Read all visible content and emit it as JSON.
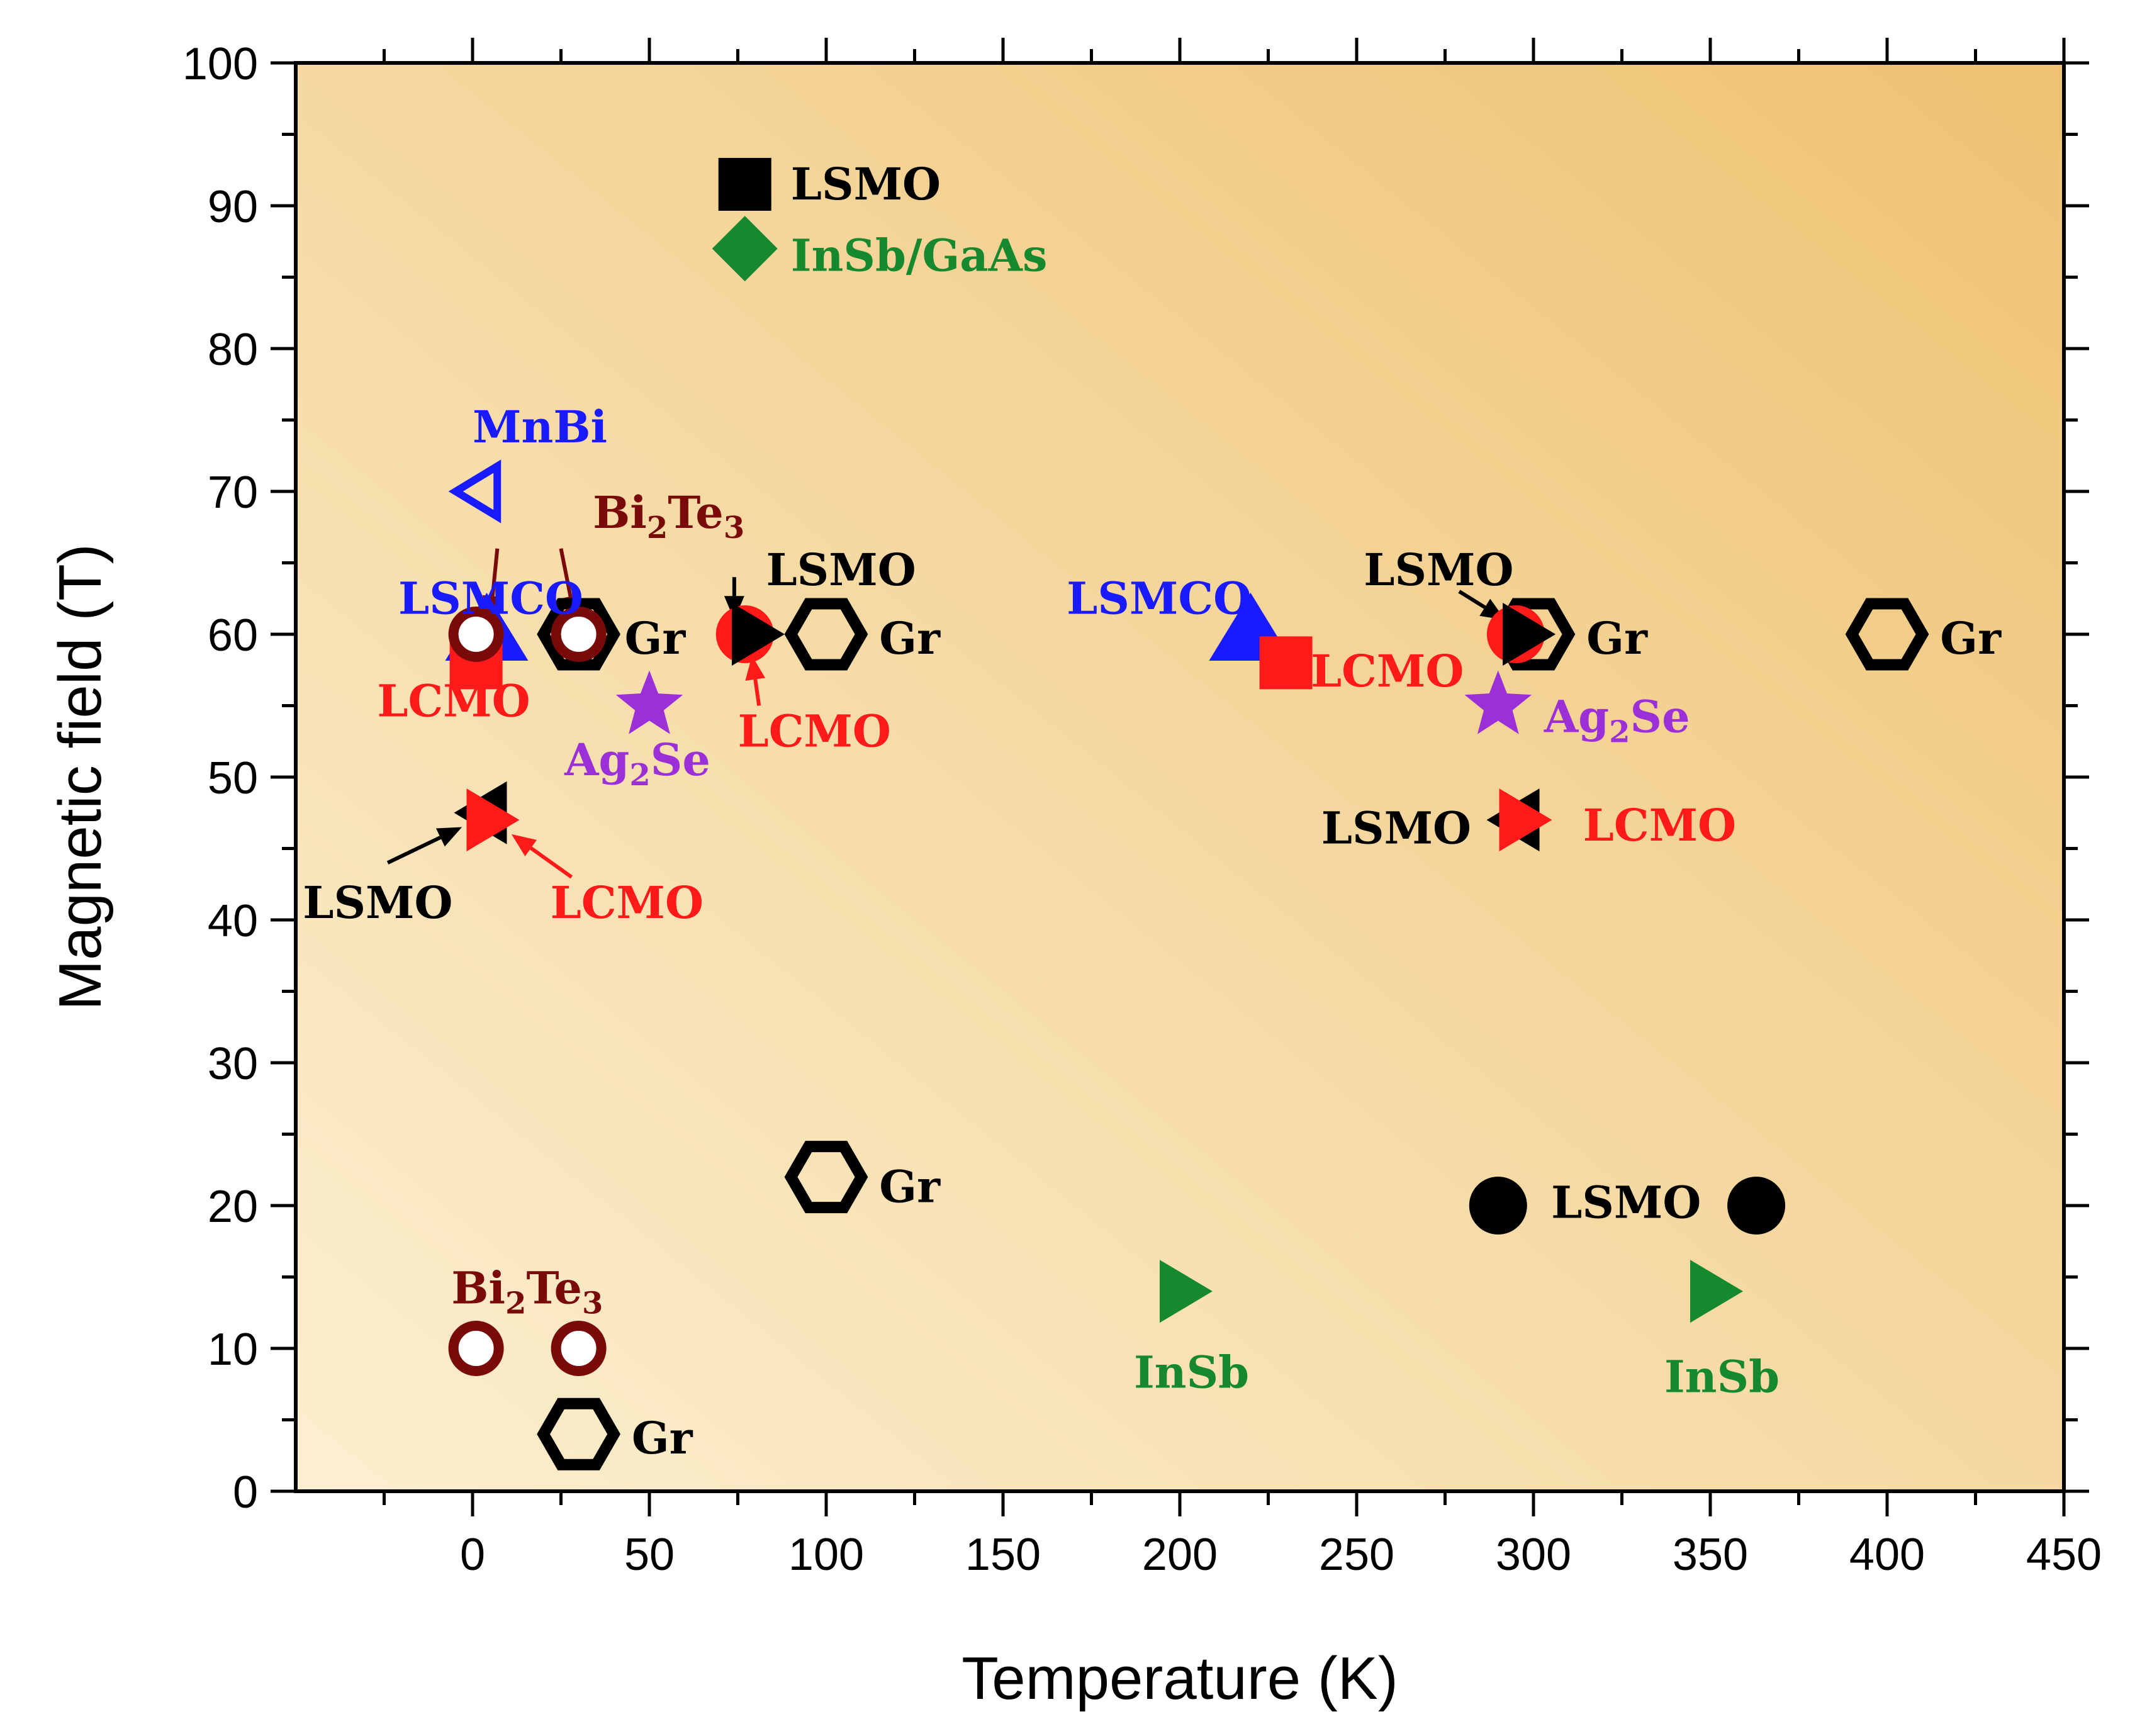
{
  "chart_data": {
    "type": "scatter",
    "title": "",
    "xlabel": "Temperature (K)",
    "ylabel": "Magnetic field (T)",
    "xlim": [
      -50,
      450
    ],
    "ylim": [
      0,
      100
    ],
    "xticks": [
      0,
      50,
      100,
      150,
      200,
      250,
      300,
      350,
      400,
      450
    ],
    "yticks": [
      0,
      10,
      20,
      30,
      40,
      50,
      60,
      70,
      80,
      90,
      100
    ],
    "colors": {
      "black": "#000000",
      "red": "#ff1a1a",
      "blue": "#1a1aff",
      "green": "#16882e",
      "purple": "#9b30d9",
      "maroon": "#7a0a0a",
      "bg_light": "#fcefd0",
      "bg_dark": "#eec272"
    },
    "points": [
      {
        "material": "LSMO",
        "marker": "square",
        "color": "black",
        "x": 77,
        "y": 91.5
      },
      {
        "material": "InSb/GaAs",
        "marker": "diamond",
        "color": "green",
        "x": 77,
        "y": 87
      },
      {
        "material": "MnBi",
        "marker": "triangle-left-open",
        "color": "blue",
        "x": 2,
        "y": 70
      },
      {
        "material": "LSMCO",
        "marker": "triangle-up",
        "color": "blue",
        "x": 4,
        "y": 60
      },
      {
        "material": "LCMO",
        "marker": "square",
        "color": "red",
        "x": 1,
        "y": 58
      },
      {
        "material": "Bi2Te3",
        "marker": "ring",
        "color": "maroon",
        "x": 1,
        "y": 60
      },
      {
        "material": "Gr",
        "marker": "hexagon-open",
        "color": "black",
        "x": 30,
        "y": 60
      },
      {
        "material": "Bi2Te3",
        "marker": "ring",
        "color": "maroon",
        "x": 30,
        "y": 60
      },
      {
        "material": "Ag2Se",
        "marker": "star",
        "color": "purple",
        "x": 50,
        "y": 55
      },
      {
        "material": "LCMO",
        "marker": "circle",
        "color": "red",
        "x": 77,
        "y": 60
      },
      {
        "material": "LSMO",
        "marker": "triangle-right",
        "color": "black",
        "x": 79,
        "y": 60
      },
      {
        "material": "Gr",
        "marker": "hexagon-open",
        "color": "black",
        "x": 100,
        "y": 60
      },
      {
        "material": "LSMO",
        "marker": "triangle-left",
        "color": "black",
        "x": 4,
        "y": 47.5
      },
      {
        "material": "LCMO",
        "marker": "triangle-right",
        "color": "red",
        "x": 4,
        "y": 47
      },
      {
        "material": "LSMCO",
        "marker": "triangle-up",
        "color": "blue",
        "x": 220,
        "y": 60
      },
      {
        "material": "LCMO",
        "marker": "square",
        "color": "red",
        "x": 230,
        "y": 58
      },
      {
        "material": "Gr",
        "marker": "hexagon-open",
        "color": "black",
        "x": 300,
        "y": 60
      },
      {
        "material": "LCMO",
        "marker": "circle",
        "color": "red",
        "x": 295,
        "y": 60
      },
      {
        "material": "LSMO",
        "marker": "triangle-right",
        "color": "black",
        "x": 297,
        "y": 60
      },
      {
        "material": "Ag2Se",
        "marker": "star",
        "color": "purple",
        "x": 290,
        "y": 55
      },
      {
        "material": "LSMO",
        "marker": "triangle-left",
        "color": "black",
        "x": 296,
        "y": 47
      },
      {
        "material": "LCMO",
        "marker": "triangle-right",
        "color": "red",
        "x": 296,
        "y": 47
      },
      {
        "material": "Gr",
        "marker": "hexagon-open",
        "color": "black",
        "x": 400,
        "y": 60
      },
      {
        "material": "Gr",
        "marker": "hexagon-open",
        "color": "black",
        "x": 100,
        "y": 22
      },
      {
        "material": "LSMO",
        "marker": "circle",
        "color": "black",
        "x": 290,
        "y": 20
      },
      {
        "material": "LSMO",
        "marker": "circle",
        "color": "black",
        "x": 363,
        "y": 20
      },
      {
        "material": "InSb",
        "marker": "triangle-right",
        "color": "green",
        "x": 200,
        "y": 14
      },
      {
        "material": "InSb",
        "marker": "triangle-right",
        "color": "green",
        "x": 350,
        "y": 14
      },
      {
        "material": "Bi2Te3",
        "marker": "ring",
        "color": "maroon",
        "x": 1,
        "y": 10
      },
      {
        "material": "Bi2Te3",
        "marker": "ring",
        "color": "maroon",
        "x": 30,
        "y": 10
      },
      {
        "material": "Gr",
        "marker": "hexagon-open",
        "color": "black",
        "x": 30,
        "y": 4
      }
    ],
    "annotations": [
      {
        "text": "LSMO",
        "color": "black",
        "anchor_x": 90,
        "anchor_y": 91.5
      },
      {
        "text": "InSb/GaAs",
        "color": "green",
        "anchor_x": 90,
        "anchor_y": 86.5
      },
      {
        "text": "MnBi",
        "color": "blue",
        "anchor_x": 0,
        "anchor_y": 74.5
      },
      {
        "text": "Bi",
        "sub1": "2",
        "mid": "Te",
        "sub2": "3",
        "color": "maroon",
        "anchor_x": 34,
        "anchor_y": 68.5
      },
      {
        "text": "LSMCO",
        "color": "blue",
        "anchor_x": -21,
        "anchor_y": 62.5
      },
      {
        "text": "LSMO",
        "color": "black",
        "anchor_x": 83,
        "anchor_y": 64.5
      },
      {
        "text": "Gr",
        "color": "black",
        "anchor_x": 43,
        "anchor_y": 59.7
      },
      {
        "text": "Gr",
        "color": "black",
        "anchor_x": 115,
        "anchor_y": 59.7
      },
      {
        "text": "LCMO",
        "color": "red",
        "anchor_x": -27,
        "anchor_y": 55.3
      },
      {
        "text": "LCMO",
        "color": "red",
        "anchor_x": 75,
        "anchor_y": 53.2
      },
      {
        "text": "Ag",
        "sub1": "2",
        "mid": "Se",
        "color": "purple",
        "anchor_x": 26,
        "anchor_y": 51.2
      },
      {
        "text": "LSMO",
        "color": "black",
        "anchor_x": -48,
        "anchor_y": 41.2
      },
      {
        "text": "LCMO",
        "color": "red",
        "anchor_x": 22,
        "anchor_y": 41.2
      },
      {
        "text": "LSMCO",
        "color": "blue",
        "anchor_x": 168,
        "anchor_y": 62.5
      },
      {
        "text": "LCMO",
        "color": "red",
        "anchor_x": 237,
        "anchor_y": 57.4
      },
      {
        "text": "LSMO",
        "color": "black",
        "anchor_x": 252,
        "anchor_y": 64.5
      },
      {
        "text": "Gr",
        "color": "black",
        "anchor_x": 315,
        "anchor_y": 59.7
      },
      {
        "text": "Ag",
        "sub1": "2",
        "mid": "Se",
        "color": "purple",
        "anchor_x": 303,
        "anchor_y": 54.2
      },
      {
        "text": "LSMO",
        "color": "black",
        "anchor_x": 240,
        "anchor_y": 46.4
      },
      {
        "text": "LCMO",
        "color": "red",
        "anchor_x": 314,
        "anchor_y": 46.6
      },
      {
        "text": "Gr",
        "color": "black",
        "anchor_x": 415,
        "anchor_y": 59.7
      },
      {
        "text": "Gr",
        "color": "black",
        "anchor_x": 115,
        "anchor_y": 21.3
      },
      {
        "text": "LSMO",
        "color": "black",
        "anchor_x": 305,
        "anchor_y": 20.2
      },
      {
        "text": "InSb",
        "color": "green",
        "anchor_x": 187,
        "anchor_y": 8.3
      },
      {
        "text": "InSb",
        "color": "green",
        "anchor_x": 337,
        "anchor_y": 8.0
      },
      {
        "text": "Bi",
        "sub1": "2",
        "mid": "Te",
        "sub2": "3",
        "color": "maroon",
        "anchor_x": -6,
        "anchor_y": 14.2
      },
      {
        "text": "Gr",
        "color": "black",
        "anchor_x": 45,
        "anchor_y": 3.7
      }
    ],
    "arrows": [
      {
        "from": [
          7,
          66
        ],
        "to": [
          5,
          61
        ],
        "color": "maroon"
      },
      {
        "from": [
          25,
          66
        ],
        "to": [
          29,
          61
        ],
        "color": "maroon"
      },
      {
        "from": [
          74,
          64
        ],
        "to": [
          74,
          61
        ],
        "color": "black"
      },
      {
        "from": [
          81,
          55
        ],
        "to": [
          79,
          58.5
        ],
        "color": "red"
      },
      {
        "from": [
          -24,
          44
        ],
        "to": [
          -3,
          46.5
        ],
        "color": "black"
      },
      {
        "from": [
          28,
          43
        ],
        "to": [
          11,
          46
        ],
        "color": "red"
      },
      {
        "from": [
          279,
          63
        ],
        "to": [
          292,
          61
        ],
        "color": "black"
      }
    ]
  }
}
